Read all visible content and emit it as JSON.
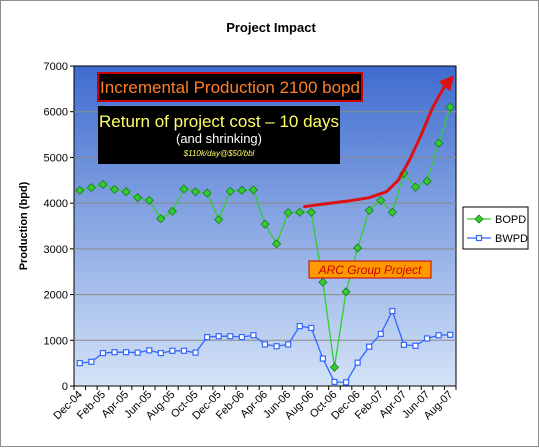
{
  "chart_data": {
    "type": "line",
    "title": "Project Impact",
    "ylabel": "Production (bpd)",
    "xlabel": "",
    "ylim": [
      0,
      7000
    ],
    "yticks": [
      0,
      1000,
      2000,
      3000,
      4000,
      5000,
      6000,
      7000
    ],
    "ytick_labels": [
      "0",
      "1000",
      "2000",
      "3000",
      "4000",
      "5000",
      "6000",
      "7000"
    ],
    "x_tick_labels": [
      "Dec-04",
      "Feb-05",
      "Apr-05",
      "Jun-05",
      "Aug-05",
      "Oct-05",
      "Dec-05",
      "Feb-06",
      "Apr-06",
      "Jun-06",
      "Aug-06",
      "Oct-06",
      "Dec-06",
      "Feb-07",
      "Apr-07",
      "Jun-07",
      "Aug-07"
    ],
    "grid": true,
    "legend_position": "right",
    "series": [
      {
        "name": "BOPD",
        "color": "#33cc33",
        "marker": "diamond",
        "values": [
          4280,
          4340,
          4410,
          4300,
          4250,
          4120,
          4060,
          3660,
          3820,
          4310,
          4250,
          4220,
          3640,
          4260,
          4280,
          4290,
          3540,
          3110,
          3790,
          3800,
          3800,
          2270,
          410,
          2060,
          3020,
          3840,
          4060,
          3800,
          4650,
          4350,
          4480,
          5310,
          6100
        ]
      },
      {
        "name": "BWPD",
        "color": "#3366ff",
        "marker": "square",
        "values": [
          500,
          530,
          720,
          740,
          740,
          730,
          780,
          720,
          770,
          770,
          730,
          1070,
          1090,
          1090,
          1070,
          1110,
          910,
          870,
          910,
          1310,
          1270,
          600,
          90,
          80,
          510,
          860,
          1140,
          1640,
          900,
          880,
          1040,
          1110,
          1120
        ]
      }
    ],
    "trend_line": {
      "color": "#dd1111",
      "points": [
        [
          19.3,
          3920
        ],
        [
          21,
          3980
        ],
        [
          23,
          4040
        ],
        [
          25,
          4120
        ],
        [
          26.5,
          4250
        ],
        [
          27.5,
          4500
        ],
        [
          28.5,
          4950
        ],
        [
          29.5,
          5500
        ],
        [
          30.5,
          6100
        ],
        [
          31.5,
          6550
        ],
        [
          32,
          6700
        ]
      ]
    },
    "annotations": [
      {
        "text": "Incremental Production 2100 bopd"
      },
      {
        "text": "Return of project cost – 10 days"
      },
      {
        "text": "(and shrinking)"
      },
      {
        "text": "$110k/day@$50/bbl"
      },
      {
        "text": "ARC Group Project"
      }
    ]
  }
}
